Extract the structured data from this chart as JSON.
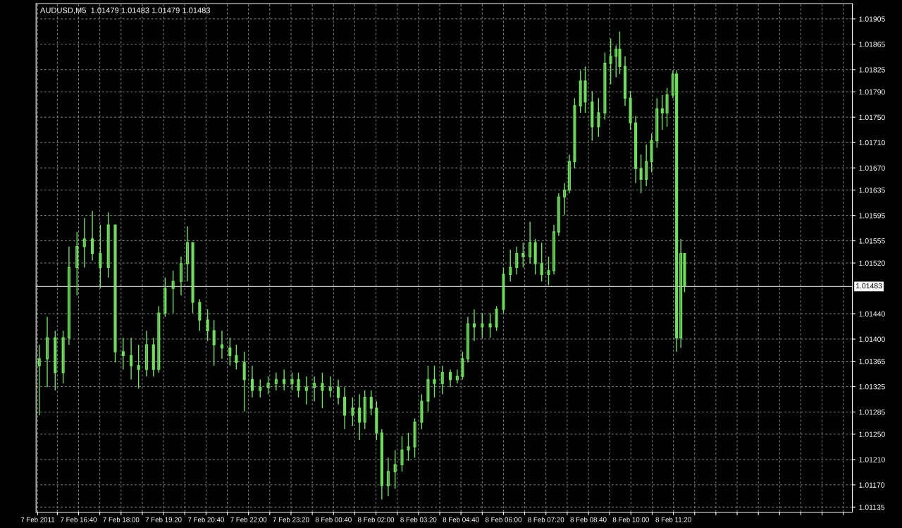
{
  "chart_data": {
    "type": "candlestick",
    "title": "AUDUSD,M5  1.01479 1.01483 1.01479 1.01483",
    "color": "#6ee05a",
    "x": [
      "2011-02-07T15:26",
      "2011-02-07T15:41",
      "2011-02-07T15:56",
      "2011-02-07T16:11",
      "2011-02-07T16:22",
      "2011-02-07T16:37",
      "2011-02-07T16:51",
      "2011-02-07T17:06",
      "2011-02-07T17:21",
      "2011-02-07T17:36",
      "2011-02-07T17:49",
      "2011-02-07T18:04",
      "2011-02-07T18:19",
      "2011-02-07T18:33",
      "2011-02-07T18:48",
      "2011-02-07T19:01",
      "2011-02-07T19:11",
      "2011-02-07T19:23",
      "2011-02-07T19:38",
      "2011-02-07T19:53",
      "2011-02-07T20:05",
      "2011-02-07T20:15",
      "2011-02-07T20:28",
      "2011-02-07T20:43",
      "2011-02-07T20:55",
      "2011-02-07T21:10",
      "2011-02-07T21:25",
      "2011-02-07T21:37",
      "2011-02-07T21:52",
      "2011-02-07T22:07",
      "2011-02-07T22:22",
      "2011-02-07T22:37",
      "2011-02-07T22:52",
      "2011-02-07T23:07",
      "2011-02-07T23:22",
      "2011-02-07T23:34",
      "2011-02-07T23:49",
      "2011-02-08T00:04",
      "2011-02-08T00:19",
      "2011-02-08T00:34",
      "2011-02-08T00:49",
      "2011-02-08T01:01",
      "2011-02-08T01:16",
      "2011-02-08T01:29",
      "2011-02-08T01:39",
      "2011-02-08T01:51",
      "2011-02-08T02:01",
      "2011-02-08T02:11",
      "2011-02-08T02:23",
      "2011-02-08T02:36",
      "2011-02-08T02:49",
      "2011-02-08T03:01",
      "2011-02-08T03:13",
      "2011-02-08T03:26",
      "2011-02-08T03:38",
      "2011-02-08T03:50",
      "2011-02-08T04:05",
      "2011-02-08T04:20",
      "2011-02-08T04:33",
      "2011-02-08T04:43",
      "2011-02-08T04:53",
      "2011-02-08T05:05",
      "2011-02-08T05:20",
      "2011-02-08T05:35",
      "2011-02-08T05:47",
      "2011-02-08T06:00",
      "2011-02-08T06:13",
      "2011-02-08T06:25",
      "2011-02-08T06:37",
      "2011-02-08T06:50",
      "2011-02-08T07:00",
      "2011-02-08T07:12",
      "2011-02-08T07:25",
      "2011-02-08T07:35",
      "2011-02-08T07:44",
      "2011-02-08T07:55",
      "2011-02-08T08:04",
      "2011-02-08T08:14",
      "2011-02-08T08:25",
      "2011-02-08T08:34",
      "2011-02-08T08:47",
      "2011-02-08T08:59",
      "2011-02-08T09:11",
      "2011-02-08T09:22",
      "2011-02-08T09:32",
      "2011-02-08T09:39",
      "2011-02-08T09:49",
      "2011-02-08T09:59",
      "2011-02-08T10:09",
      "2011-02-08T10:19",
      "2011-02-08T10:29",
      "2011-02-08T10:39",
      "2011-02-08T10:49",
      "2011-02-08T10:59",
      "2011-02-08T11:08",
      "2011-02-08T11:19",
      "2011-02-08T11:26",
      "2011-02-08T11:34",
      "2011-02-08T11:41"
    ],
    "ohlc": [
      [
        1.01358,
        1.01391,
        1.0128,
        1.01369
      ],
      [
        1.01369,
        1.01435,
        1.01324,
        1.01402
      ],
      [
        1.01402,
        1.01413,
        1.01319,
        1.01347
      ],
      [
        1.01347,
        1.01413,
        1.0133,
        1.01402
      ],
      [
        1.01402,
        1.01546,
        1.01391,
        1.01513
      ],
      [
        1.01513,
        1.01569,
        1.01469,
        1.01546
      ],
      [
        1.01546,
        1.01591,
        1.01513,
        1.01558
      ],
      [
        1.01558,
        1.01602,
        1.01524,
        1.01535
      ],
      [
        1.01535,
        1.0158,
        1.0148,
        1.01513
      ],
      [
        1.01513,
        1.016,
        1.01497,
        1.0158
      ],
      [
        1.0158,
        1.0158,
        1.01363,
        1.0138
      ],
      [
        1.0138,
        1.01402,
        1.01352,
        1.01374
      ],
      [
        1.01374,
        1.01402,
        1.01336,
        1.01358
      ],
      [
        1.01358,
        1.01391,
        1.01322,
        1.01352
      ],
      [
        1.01352,
        1.01413,
        1.01341,
        1.01391
      ],
      [
        1.01391,
        1.01402,
        1.01341,
        1.01352
      ],
      [
        1.01352,
        1.01452,
        1.01347,
        1.01441
      ],
      [
        1.01441,
        1.01497,
        1.01435,
        1.0148
      ],
      [
        1.0148,
        1.01508,
        1.01441,
        1.01491
      ],
      [
        1.01491,
        1.0153,
        1.01469,
        1.01519
      ],
      [
        1.01519,
        1.01578,
        1.01491,
        1.01552
      ],
      [
        1.01552,
        1.01552,
        1.01441,
        1.01458
      ],
      [
        1.01458,
        1.01463,
        1.01413,
        1.0143
      ],
      [
        1.0143,
        1.01447,
        1.01397,
        1.01413
      ],
      [
        1.01413,
        1.0143,
        1.01358,
        1.01391
      ],
      [
        1.01391,
        1.01413,
        1.01369,
        1.01386
      ],
      [
        1.01386,
        1.01402,
        1.01358,
        1.01374
      ],
      [
        1.01374,
        1.01391,
        1.01352,
        1.01363
      ],
      [
        1.01363,
        1.0138,
        1.01286,
        1.01336
      ],
      [
        1.01336,
        1.01358,
        1.01308,
        1.01319
      ],
      [
        1.01319,
        1.01336,
        1.01308,
        1.01324
      ],
      [
        1.01324,
        1.01341,
        1.01313,
        1.0133
      ],
      [
        1.0133,
        1.01347,
        1.01319,
        1.01336
      ],
      [
        1.01336,
        1.01352,
        1.01319,
        1.0133
      ],
      [
        1.0133,
        1.01347,
        1.01319,
        1.01336
      ],
      [
        1.01336,
        1.01347,
        1.01308,
        1.01319
      ],
      [
        1.01319,
        1.01341,
        1.01297,
        1.01324
      ],
      [
        1.01324,
        1.01341,
        1.01302,
        1.0133
      ],
      [
        1.0133,
        1.01347,
        1.01291,
        1.01319
      ],
      [
        1.01319,
        1.01341,
        1.01308,
        1.01324
      ],
      [
        1.01324,
        1.01336,
        1.01297,
        1.01308
      ],
      [
        1.01308,
        1.01324,
        1.01258,
        1.0128
      ],
      [
        1.0128,
        1.01308,
        1.01263,
        1.01291
      ],
      [
        1.01291,
        1.01313,
        1.01241,
        1.01269
      ],
      [
        1.01269,
        1.01319,
        1.01258,
        1.01308
      ],
      [
        1.01308,
        1.01319,
        1.0128,
        1.01291
      ],
      [
        1.01291,
        1.01302,
        1.01241,
        1.01252
      ],
      [
        1.01252,
        1.01258,
        1.01147,
        1.01169
      ],
      [
        1.01169,
        1.01213,
        1.01152,
        1.01191
      ],
      [
        1.01191,
        1.01225,
        1.01164,
        1.01202
      ],
      [
        1.01202,
        1.01247,
        1.01191,
        1.01225
      ],
      [
        1.01225,
        1.01252,
        1.01208,
        1.0123
      ],
      [
        1.0123,
        1.01275,
        1.01213,
        1.01269
      ],
      [
        1.01269,
        1.01313,
        1.01258,
        1.01302
      ],
      [
        1.01302,
        1.01358,
        1.01286,
        1.01336
      ],
      [
        1.01336,
        1.01358,
        1.01308,
        1.0133
      ],
      [
        1.0133,
        1.01358,
        1.01313,
        1.01347
      ],
      [
        1.01347,
        1.01352,
        1.01324,
        1.01336
      ],
      [
        1.01336,
        1.01352,
        1.0133,
        1.01341
      ],
      [
        1.01341,
        1.0138,
        1.01336,
        1.01369
      ],
      [
        1.01369,
        1.01435,
        1.01363,
        1.01424
      ],
      [
        1.01424,
        1.01447,
        1.01397,
        1.01419
      ],
      [
        1.01419,
        1.01441,
        1.01402,
        1.01424
      ],
      [
        1.01424,
        1.01441,
        1.01402,
        1.01419
      ],
      [
        1.01419,
        1.01452,
        1.01413,
        1.01447
      ],
      [
        1.01447,
        1.01513,
        1.01441,
        1.01502
      ],
      [
        1.01502,
        1.01541,
        1.01491,
        1.01513
      ],
      [
        1.01513,
        1.01546,
        1.01502,
        1.01535
      ],
      [
        1.01535,
        1.01552,
        1.01513,
        1.0153
      ],
      [
        1.0153,
        1.01585,
        1.01519,
        1.01552
      ],
      [
        1.01552,
        1.01558,
        1.01502,
        1.01519
      ],
      [
        1.01519,
        1.01552,
        1.01491,
        1.01502
      ],
      [
        1.01502,
        1.0153,
        1.01485,
        1.01508
      ],
      [
        1.01508,
        1.0158,
        1.01502,
        1.01569
      ],
      [
        1.01569,
        1.0163,
        1.01563,
        1.01624
      ],
      [
        1.01624,
        1.01646,
        1.01596,
        1.01635
      ],
      [
        1.01635,
        1.01691,
        1.0163,
        1.0168
      ],
      [
        1.0168,
        1.0178,
        1.01669,
        1.01768
      ],
      [
        1.01768,
        1.01824,
        1.01757,
        1.01807
      ],
      [
        1.01807,
        1.0183,
        1.01757,
        1.01774
      ],
      [
        1.01774,
        1.01791,
        1.01713,
        1.01735
      ],
      [
        1.01735,
        1.0178,
        1.01719,
        1.01757
      ],
      [
        1.01757,
        1.01852,
        1.01746,
        1.01835
      ],
      [
        1.01835,
        1.01874,
        1.01802,
        1.01846
      ],
      [
        1.01846,
        1.01863,
        1.01813,
        1.01857
      ],
      [
        1.01857,
        1.01885,
        1.01818,
        1.0183
      ],
      [
        1.0183,
        1.01846,
        1.01768,
        1.0178
      ],
      [
        1.0178,
        1.01791,
        1.0173,
        1.01741
      ],
      [
        1.01741,
        1.01752,
        1.01646,
        1.01669
      ],
      [
        1.01669,
        1.01691,
        1.0163,
        1.01652
      ],
      [
        1.01652,
        1.01707,
        1.01641,
        1.0168
      ],
      [
        1.0168,
        1.01724,
        1.01663,
        1.01713
      ],
      [
        1.01713,
        1.0178,
        1.01702,
        1.01763
      ],
      [
        1.01763,
        1.01785,
        1.0173,
        1.01757
      ],
      [
        1.01757,
        1.01796,
        1.01735,
        1.01785
      ],
      [
        1.01785,
        1.01824,
        1.0178,
        1.01818
      ],
      [
        1.01818,
        1.01824,
        1.0138,
        1.01402
      ],
      [
        1.01402,
        1.01558,
        1.01386,
        1.01535
      ],
      [
        1.01535,
        1.01535,
        1.01474,
        1.01483
      ]
    ],
    "xlim": [
      "2011-02-07T15:20",
      "2011-02-08T16:57"
    ],
    "ylim": [
      1.01127,
      1.01929
    ],
    "xticks": [
      {
        "value": "2011-02-07T15:23",
        "label": "7 Feb 2011"
      },
      {
        "value": "2011-02-07T16:00",
        "label": null
      },
      {
        "value": "2011-02-07T16:40",
        "label": "7 Feb 16:40"
      },
      {
        "value": "2011-02-07T17:20",
        "label": null
      },
      {
        "value": "2011-02-07T18:00",
        "label": "7 Feb 18:00"
      },
      {
        "value": "2011-02-07T18:40",
        "label": null
      },
      {
        "value": "2011-02-07T19:20",
        "label": "7 Feb 19:20"
      },
      {
        "value": "2011-02-07T20:00",
        "label": null
      },
      {
        "value": "2011-02-07T20:40",
        "label": "7 Feb 20:40"
      },
      {
        "value": "2011-02-07T21:20",
        "label": null
      },
      {
        "value": "2011-02-07T22:00",
        "label": "7 Feb 22:00"
      },
      {
        "value": "2011-02-07T22:40",
        "label": null
      },
      {
        "value": "2011-02-07T23:20",
        "label": "7 Feb 23:20"
      },
      {
        "value": "2011-02-08T00:00",
        "label": null
      },
      {
        "value": "2011-02-08T00:40",
        "label": "8 Feb 00:40"
      },
      {
        "value": "2011-02-08T01:20",
        "label": null
      },
      {
        "value": "2011-02-08T02:00",
        "label": "8 Feb 02:00"
      },
      {
        "value": "2011-02-08T02:40",
        "label": null
      },
      {
        "value": "2011-02-08T03:20",
        "label": "8 Feb 03:20"
      },
      {
        "value": "2011-02-08T04:00",
        "label": null
      },
      {
        "value": "2011-02-08T04:40",
        "label": "8 Feb 04:40"
      },
      {
        "value": "2011-02-08T05:20",
        "label": null
      },
      {
        "value": "2011-02-08T06:00",
        "label": "8 Feb 06:00"
      },
      {
        "value": "2011-02-08T06:40",
        "label": null
      },
      {
        "value": "2011-02-08T07:20",
        "label": "8 Feb 07:20"
      },
      {
        "value": "2011-02-08T08:00",
        "label": null
      },
      {
        "value": "2011-02-08T08:40",
        "label": "8 Feb 08:40"
      },
      {
        "value": "2011-02-08T09:20",
        "label": null
      },
      {
        "value": "2011-02-08T10:00",
        "label": "8 Feb 10:00"
      },
      {
        "value": "2011-02-08T10:40",
        "label": null
      },
      {
        "value": "2011-02-08T11:20",
        "label": "8 Feb 11:20"
      },
      {
        "value": "2011-02-08T12:00",
        "label": null
      },
      {
        "value": "2011-02-08T12:40",
        "label": null
      },
      {
        "value": "2011-02-08T13:20",
        "label": null
      },
      {
        "value": "2011-02-08T14:00",
        "label": null
      },
      {
        "value": "2011-02-08T14:40",
        "label": null
      },
      {
        "value": "2011-02-08T15:20",
        "label": null
      },
      {
        "value": "2011-02-08T16:00",
        "label": null
      },
      {
        "value": "2011-02-08T16:40",
        "label": null
      }
    ],
    "yticks": [
      1.01135,
      {
        "value": 1.0117,
        "label": "1.01170"
      },
      {
        "value": 1.0121,
        "label": "1.01210"
      },
      {
        "value": 1.0125,
        "label": "1.01250"
      },
      1.01285,
      1.01325,
      1.01365,
      {
        "value": 1.014,
        "label": "1.01400"
      },
      {
        "value": 1.0144,
        "label": "1.01440"
      },
      {
        "value": 1.0152,
        "label": "1.01520"
      },
      1.01555,
      1.01595,
      1.01635,
      {
        "value": 1.0167,
        "label": "1.01670"
      },
      {
        "value": 1.0171,
        "label": "1.01710"
      },
      {
        "value": 1.0175,
        "label": "1.01750"
      },
      {
        "value": 1.0179,
        "label": "1.01790"
      },
      1.01825,
      1.01865,
      1.01905
    ],
    "ref_lines": [
      {
        "axis": "y",
        "value": 1.01483,
        "label": "1.01483",
        "color": "#c0c0c0"
      }
    ],
    "grid": true
  }
}
